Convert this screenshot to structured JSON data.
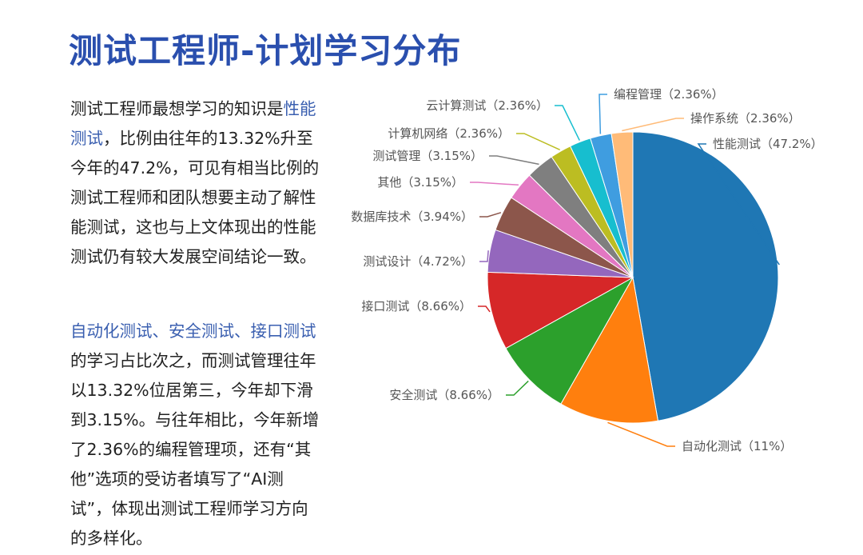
{
  "title": "测试工程师-计划学习分布",
  "paragraphs": [
    [
      "测试工程师最想学习的知识是",
      "性能测试",
      "，比例由往年的13.32%升至今年的47.2%，可见有相当比例的测试工程师和团队想要主动了解性能测试，这也与上文体现出的性能测试仍有较大发展空间结论一致。"
    ],
    [
      "自动化测试、安全测试、接口测试",
      "的学习占比次之，而测试管理往年以13.32%位居第三，今年却下滑到3.15%。与往年相比，今年新增了2.36%的编程管理项，还有“其他”选项的受访者填写了“AI测试”，体现出测试工程师学习方向的多样化。"
    ]
  ],
  "chart_data": {
    "type": "pie",
    "categories": [
      "性能测试",
      "自动化测试",
      "安全测试",
      "接口测试",
      "测试设计",
      "数据库技术",
      "其他",
      "测试管理",
      "计算机网络",
      "云计算测试",
      "编程管理",
      "操作系统"
    ],
    "values": [
      47.2,
      11,
      8.66,
      8.66,
      4.72,
      3.94,
      3.15,
      3.15,
      2.36,
      2.36,
      2.36,
      2.36
    ],
    "value_labels": [
      "（47.2%）",
      "（11%）",
      "（8.66%）",
      "（8.66%）",
      "（4.72%）",
      "（3.94%）",
      "（3.15%）",
      "（3.15%）",
      "（2.36%）",
      "（2.36%）",
      "（2.36%）",
      "（2.36%）"
    ],
    "colors": [
      "#1f77b4",
      "#ff7f0e",
      "#2ca02c",
      "#d62728",
      "#9467bd",
      "#8c564b",
      "#e377c2",
      "#7f7f7f",
      "#bcbd22",
      "#17becf",
      "#3f9de0",
      "#ffbb78"
    ]
  }
}
